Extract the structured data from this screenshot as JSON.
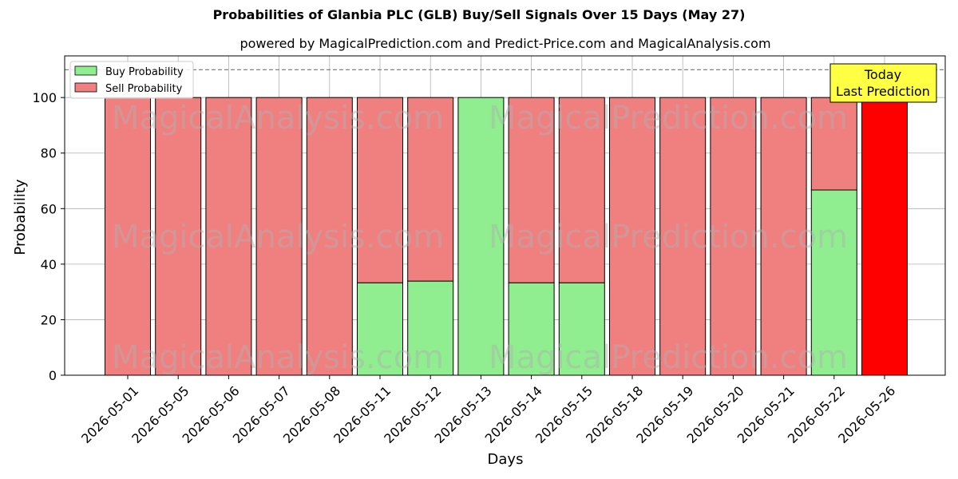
{
  "chart_data": {
    "type": "bar",
    "title": "Probabilities of Glanbia PLC (GLB) Buy/Sell Signals Over 15 Days (May 27)",
    "subtitle": "powered by MagicalPrediction.com and Predict-Price.com and MagicalAnalysis.com",
    "xlabel": "Days",
    "ylabel": "Probability",
    "ylim": [
      0,
      115
    ],
    "yticks": [
      0,
      20,
      40,
      60,
      80,
      100
    ],
    "reference_line": 110,
    "grid": true,
    "legend_position": "top-left",
    "categories": [
      "2026-05-01",
      "2026-05-05",
      "2026-05-06",
      "2026-05-07",
      "2026-05-08",
      "2026-05-11",
      "2026-05-12",
      "2026-05-13",
      "2026-05-14",
      "2026-05-15",
      "2026-05-18",
      "2026-05-19",
      "2026-05-20",
      "2026-05-21",
      "2026-05-22",
      "2026-05-26"
    ],
    "series": [
      {
        "name": "Buy Probability",
        "color": "#90ee90",
        "values": [
          0,
          0,
          0,
          0,
          0,
          33.3,
          33.9,
          100,
          33.3,
          33.3,
          0,
          0,
          0,
          0,
          66.7,
          0
        ]
      },
      {
        "name": "Sell Probability",
        "color": "#f08080",
        "values": [
          100,
          100,
          100,
          100,
          100,
          66.7,
          66.1,
          0,
          66.7,
          66.7,
          100,
          100,
          100,
          100,
          33.3,
          100
        ]
      }
    ],
    "highlight": {
      "category": "2026-05-26",
      "color": "#ff0000"
    },
    "annotation": {
      "lines": [
        "Today",
        "Last Prediction"
      ],
      "background": "#ffff44"
    },
    "watermarks": [
      "MagicalAnalysis.com",
      "MagicalPrediction.com"
    ]
  }
}
